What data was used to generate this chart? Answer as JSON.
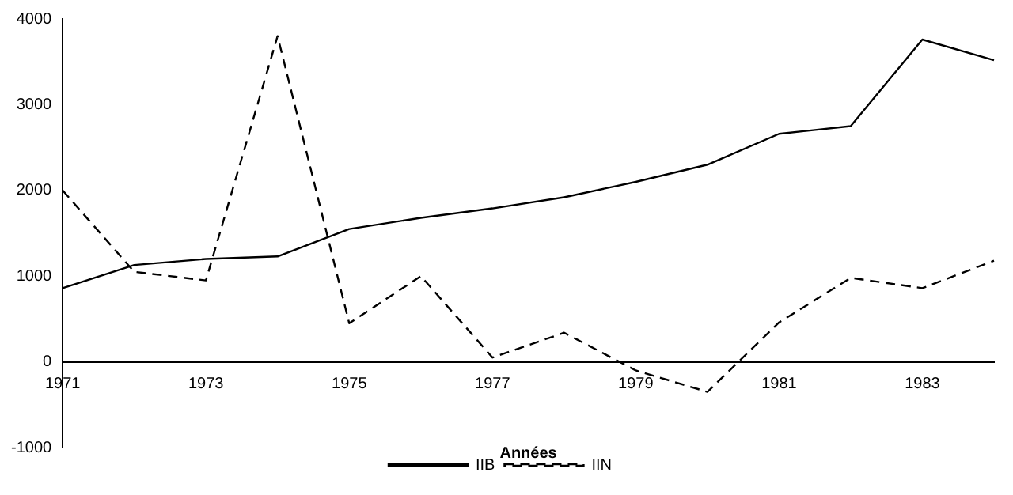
{
  "chart_data": {
    "type": "line",
    "xlabel": "Années",
    "categories": [
      "1971",
      null,
      "1973",
      null,
      "1975",
      null,
      "1977",
      null,
      "1979",
      null,
      "1981",
      null,
      "1983",
      null
    ],
    "series": [
      {
        "name": "IIB",
        "color": "#000000",
        "line_style": "solid",
        "values": [
          860,
          1130,
          1200,
          1230,
          1550,
          1680,
          1790,
          1920,
          2100,
          2300,
          2660,
          2750,
          3760,
          3520
        ]
      },
      {
        "name": "IIN",
        "color": "#000000",
        "line_style": "dashed",
        "values": [
          2000,
          1050,
          950,
          3800,
          450,
          1000,
          50,
          340,
          -100,
          -350,
          460,
          980,
          860,
          1180
        ]
      }
    ],
    "ylim": [
      -1000,
      4000
    ],
    "yticks": [
      {
        "value": -1000,
        "label": "-1000"
      },
      0,
      {
        "value": 1000,
        "label": "1000"
      },
      {
        "value": 2000,
        "label": "2000"
      },
      {
        "value": 3000,
        "label": "3000"
      },
      {
        "value": 4000,
        "label": "4000"
      }
    ],
    "grid": false,
    "legend": "bottom",
    "marker": "none"
  }
}
